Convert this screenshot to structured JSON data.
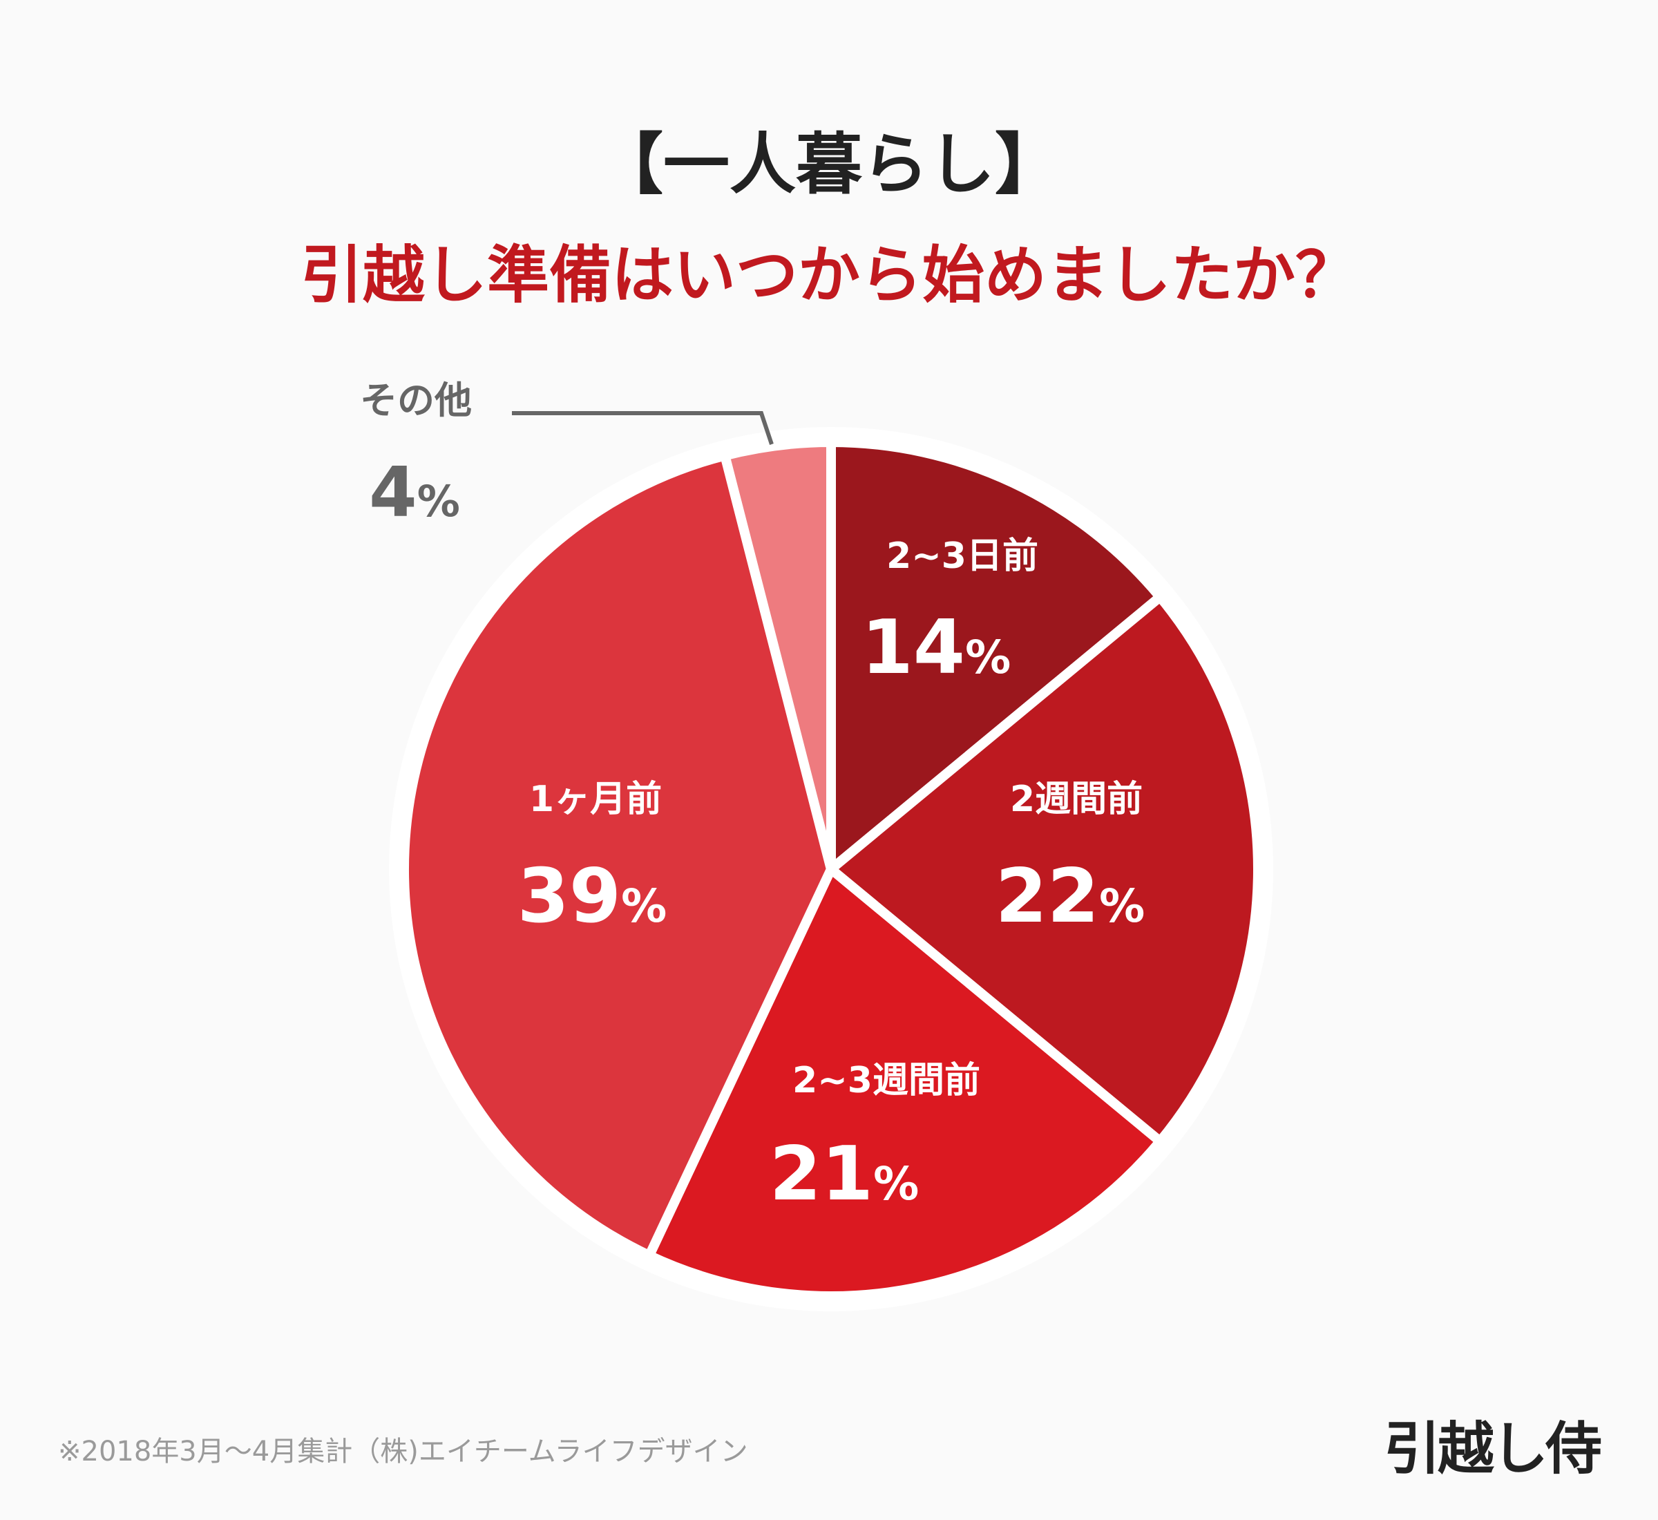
{
  "title_line1": "【一人暮らし】",
  "title_line2": "引越し準備はいつから始めましたか？",
  "chart_data": {
    "type": "pie",
    "start": "top",
    "direction": "clockwise",
    "slices": [
      {
        "label": "2~3日前",
        "value": 14,
        "display": "14",
        "color": "#9b171d"
      },
      {
        "label": "2週間前",
        "value": 22,
        "display": "22",
        "color": "#bd1920"
      },
      {
        "label": "2~3週間前",
        "value": 21,
        "display": "21",
        "color": "#db1921"
      },
      {
        "label": "1ヶ月前",
        "value": 39,
        "display": "39",
        "color": "#dc353d"
      },
      {
        "label": "その他",
        "value": 4,
        "display": "4",
        "color": "#ee7b7f"
      }
    ],
    "percent_sign": "%",
    "title": "【一人暮らし】引越し準備はいつから始めましたか？"
  },
  "footer_note": "※2018年3月～4月集計（株)エイチームライフデザイン",
  "logo_text": "引越し侍"
}
